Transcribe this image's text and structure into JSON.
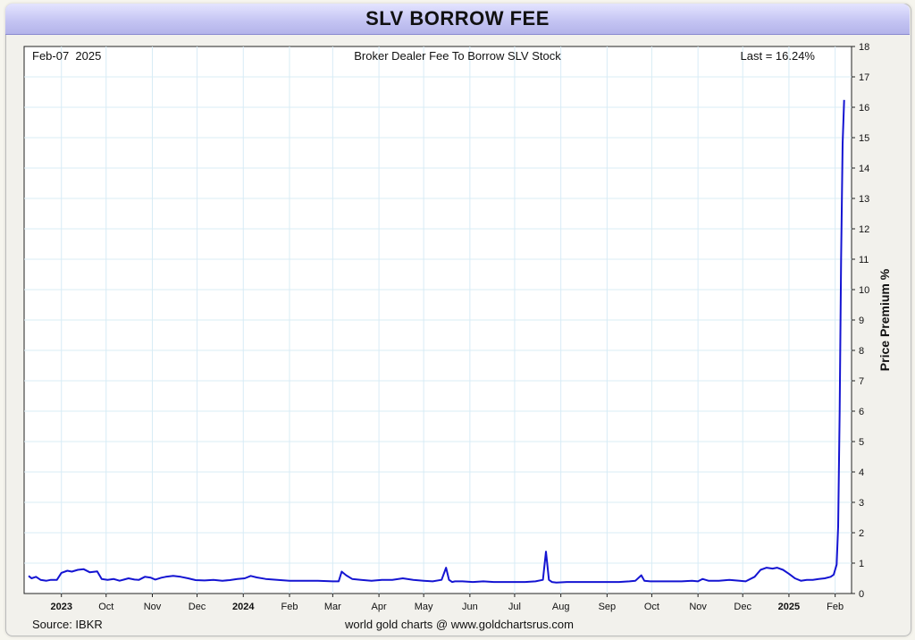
{
  "title": "SLV BORROW FEE",
  "chart_data": {
    "type": "line",
    "title": "Broker Dealer Fee To Borrow SLV Stock",
    "date_label": "Feb-07  2025",
    "last_label": "Last = 16.24%",
    "ylabel": "Price Premium %",
    "source": "Source: IBKR",
    "credit": "world gold charts @ www.goldchartsrus.com",
    "ylim": [
      0,
      18
    ],
    "y_ticks": [
      "0",
      "1",
      "2",
      "3",
      "4",
      "5",
      "6",
      "7",
      "8",
      "9",
      "10",
      "11",
      "12",
      "13",
      "14",
      "15",
      "16",
      "17",
      "18"
    ],
    "x_ticks": [
      {
        "date": "2023-09-01",
        "label": "2023",
        "bold": true
      },
      {
        "date": "2023-10-01",
        "label": "Oct",
        "bold": false
      },
      {
        "date": "2023-11-01",
        "label": "Nov",
        "bold": false
      },
      {
        "date": "2023-12-01",
        "label": "Dec",
        "bold": false
      },
      {
        "date": "2024-01-01",
        "label": "2024",
        "bold": true
      },
      {
        "date": "2024-02-01",
        "label": "Feb",
        "bold": false
      },
      {
        "date": "2024-03-01",
        "label": "Mar",
        "bold": false
      },
      {
        "date": "2024-04-01",
        "label": "Apr",
        "bold": false
      },
      {
        "date": "2024-05-01",
        "label": "May",
        "bold": false
      },
      {
        "date": "2024-06-01",
        "label": "Jun",
        "bold": false
      },
      {
        "date": "2024-07-01",
        "label": "Jul",
        "bold": false
      },
      {
        "date": "2024-08-01",
        "label": "Aug",
        "bold": false
      },
      {
        "date": "2024-09-01",
        "label": "Sep",
        "bold": false
      },
      {
        "date": "2024-10-01",
        "label": "Oct",
        "bold": false
      },
      {
        "date": "2024-11-01",
        "label": "Nov",
        "bold": false
      },
      {
        "date": "2024-12-01",
        "label": "Dec",
        "bold": false
      },
      {
        "date": "2025-01-01",
        "label": "2025",
        "bold": true
      },
      {
        "date": "2025-02-01",
        "label": "Feb",
        "bold": false
      }
    ],
    "grid": true,
    "series": [
      {
        "color": "#1414d2",
        "x": [
          "2023-08-10",
          "2023-08-12",
          "2023-08-15",
          "2023-08-18",
          "2023-08-22",
          "2023-08-25",
          "2023-08-29",
          "2023-09-01",
          "2023-09-05",
          "2023-09-08",
          "2023-09-12",
          "2023-09-16",
          "2023-09-20",
          "2023-09-25",
          "2023-09-28",
          "2023-10-02",
          "2023-10-06",
          "2023-10-10",
          "2023-10-13",
          "2023-10-16",
          "2023-10-20",
          "2023-10-23",
          "2023-10-27",
          "2023-10-31",
          "2023-11-03",
          "2023-11-07",
          "2023-11-10",
          "2023-11-15",
          "2023-11-20",
          "2023-11-25",
          "2023-11-30",
          "2023-12-06",
          "2023-12-12",
          "2023-12-18",
          "2023-12-23",
          "2023-12-28",
          "2024-01-02",
          "2024-01-06",
          "2024-01-10",
          "2024-01-16",
          "2024-01-24",
          "2024-02-01",
          "2024-02-10",
          "2024-02-20",
          "2024-03-01",
          "2024-03-05",
          "2024-03-07",
          "2024-03-10",
          "2024-03-14",
          "2024-03-20",
          "2024-03-27",
          "2024-04-03",
          "2024-04-10",
          "2024-04-17",
          "2024-04-24",
          "2024-05-01",
          "2024-05-07",
          "2024-05-13",
          "2024-05-16",
          "2024-05-18",
          "2024-05-20",
          "2024-05-22",
          "2024-05-27",
          "2024-06-03",
          "2024-06-10",
          "2024-06-17",
          "2024-06-24",
          "2024-07-01",
          "2024-07-08",
          "2024-07-15",
          "2024-07-20",
          "2024-07-22",
          "2024-07-24",
          "2024-07-26",
          "2024-07-29",
          "2024-08-05",
          "2024-08-12",
          "2024-08-19",
          "2024-08-26",
          "2024-09-02",
          "2024-09-09",
          "2024-09-16",
          "2024-09-20",
          "2024-09-24",
          "2024-09-26",
          "2024-09-30",
          "2024-10-07",
          "2024-10-14",
          "2024-10-21",
          "2024-10-28",
          "2024-11-01",
          "2024-11-04",
          "2024-11-08",
          "2024-11-15",
          "2024-11-22",
          "2024-11-29",
          "2024-12-03",
          "2024-12-09",
          "2024-12-13",
          "2024-12-17",
          "2024-12-21",
          "2024-12-24",
          "2024-12-28",
          "2025-01-01",
          "2025-01-05",
          "2025-01-09",
          "2025-01-13",
          "2025-01-17",
          "2025-01-21",
          "2025-01-25",
          "2025-01-29",
          "2025-01-31",
          "2025-02-02",
          "2025-02-03",
          "2025-02-04",
          "2025-02-05",
          "2025-02-06",
          "2025-02-07"
        ],
        "y": [
          0.58,
          0.5,
          0.55,
          0.45,
          0.42,
          0.45,
          0.45,
          0.68,
          0.75,
          0.72,
          0.78,
          0.8,
          0.7,
          0.73,
          0.48,
          0.45,
          0.48,
          0.42,
          0.46,
          0.5,
          0.46,
          0.45,
          0.55,
          0.52,
          0.46,
          0.52,
          0.55,
          0.58,
          0.55,
          0.5,
          0.44,
          0.43,
          0.45,
          0.42,
          0.44,
          0.48,
          0.5,
          0.58,
          0.53,
          0.48,
          0.45,
          0.42,
          0.42,
          0.42,
          0.4,
          0.4,
          0.72,
          0.6,
          0.48,
          0.45,
          0.42,
          0.45,
          0.45,
          0.5,
          0.45,
          0.42,
          0.4,
          0.45,
          0.85,
          0.45,
          0.38,
          0.4,
          0.4,
          0.38,
          0.4,
          0.38,
          0.38,
          0.38,
          0.38,
          0.4,
          0.45,
          1.38,
          0.45,
          0.38,
          0.36,
          0.38,
          0.38,
          0.38,
          0.38,
          0.38,
          0.38,
          0.4,
          0.42,
          0.6,
          0.42,
          0.4,
          0.4,
          0.4,
          0.4,
          0.42,
          0.4,
          0.48,
          0.42,
          0.42,
          0.45,
          0.42,
          0.4,
          0.55,
          0.78,
          0.85,
          0.82,
          0.85,
          0.78,
          0.65,
          0.5,
          0.42,
          0.45,
          0.45,
          0.48,
          0.5,
          0.55,
          0.62,
          0.95,
          2.2,
          6,
          11,
          14.8,
          16.24
        ]
      }
    ]
  }
}
